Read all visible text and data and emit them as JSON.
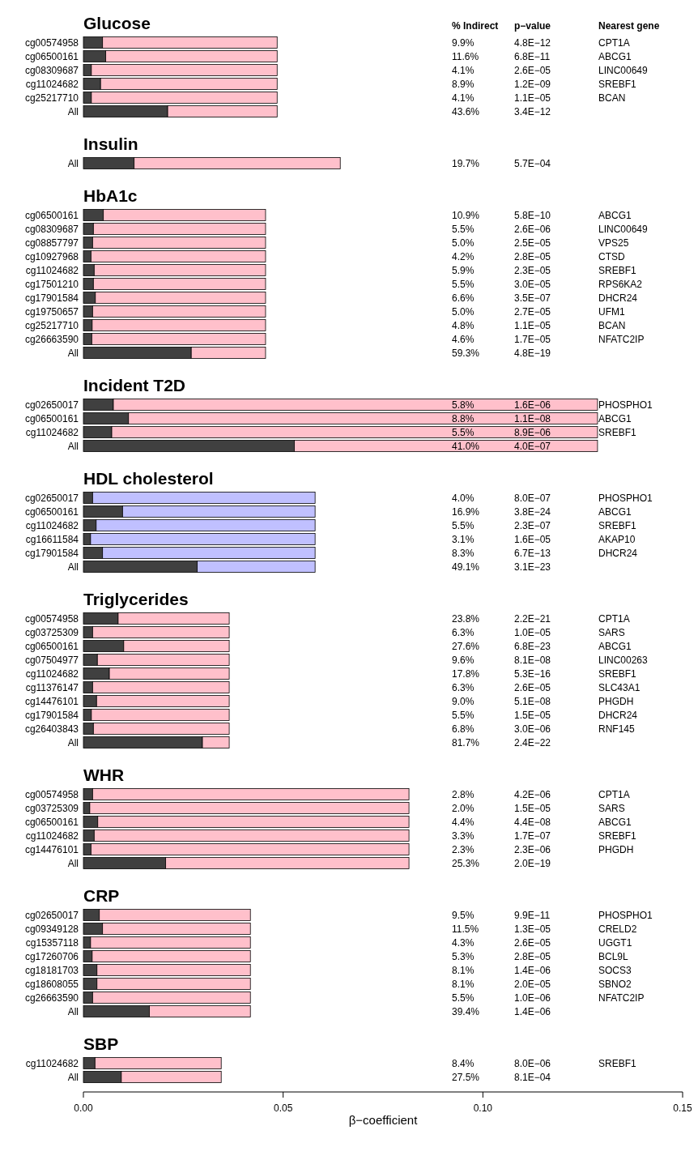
{
  "chart_data": [
    {
      "type": "bar",
      "orientation": "horizontal",
      "stacked": true,
      "title": "Glucose",
      "categories": [
        "cg00574958",
        "cg06500161",
        "cg08309687",
        "cg11024682",
        "cg25217710",
        "All"
      ],
      "xlim": [
        0,
        0.15
      ],
      "tick_labels": "y",
      "grid": false,
      "series": [
        {
          "color": "#404040",
          "values": [
            0.0048,
            0.0056,
            0.002,
            0.0043,
            0.002,
            0.0211
          ]
        },
        {
          "color": "#ffc0cb",
          "values": [
            0.0437,
            0.0429,
            0.0465,
            0.0442,
            0.0465,
            0.0274
          ]
        }
      ],
      "annotations": [
        "% Indirect",
        "p−value",
        "Nearest gene",
        "9.9%",
        "4.8E−12",
        "CPT1A",
        "11.6%",
        "6.8E−11",
        "ABCG1",
        "4.1%",
        "2.6E−05",
        "LINC00649",
        "8.9%",
        "1.2E−09",
        "SREBF1",
        "4.1%",
        "1.1E−05",
        "BCAN",
        "43.6%",
        "3.4E−12"
      ]
    },
    {
      "type": "bar",
      "orientation": "horizontal",
      "stacked": true,
      "title": "Insulin",
      "categories": [
        "All"
      ],
      "xlim": [
        0,
        0.15
      ],
      "tick_labels": "y",
      "grid": false,
      "series": [
        {
          "color": "#404040",
          "values": [
            0.0127
          ]
        },
        {
          "color": "#ffc0cb",
          "values": [
            0.0516
          ]
        }
      ],
      "annotations": [
        "19.7%",
        "5.7E−04"
      ]
    },
    {
      "type": "bar",
      "orientation": "horizontal",
      "stacked": true,
      "title": "HbA1c",
      "categories": [
        "cg06500161",
        "cg08309687",
        "cg08857797",
        "cg10927968",
        "cg11024682",
        "cg17501210",
        "cg17901584",
        "cg19750657",
        "cg25217710",
        "cg26663590",
        "All"
      ],
      "xlim": [
        0,
        0.15
      ],
      "tick_labels": "y",
      "grid": false,
      "series": [
        {
          "color": "#404040",
          "values": [
            0.005,
            0.0025,
            0.0023,
            0.0019,
            0.0027,
            0.0025,
            0.003,
            0.0023,
            0.0022,
            0.0021,
            0.027
          ]
        },
        {
          "color": "#ffc0cb",
          "values": [
            0.0406,
            0.0431,
            0.0433,
            0.0437,
            0.0429,
            0.0431,
            0.0426,
            0.0433,
            0.0434,
            0.0435,
            0.0186
          ]
        }
      ],
      "annotations": [
        "10.9%",
        "5.8E−10",
        "ABCG1",
        "5.5%",
        "2.6E−06",
        "LINC00649",
        "5.0%",
        "2.5E−05",
        "VPS25",
        "4.2%",
        "2.8E−05",
        "CTSD",
        "5.9%",
        "2.3E−05",
        "SREBF1",
        "5.5%",
        "3.0E−05",
        "RPS6KA2",
        "6.6%",
        "3.5E−07",
        "DHCR24",
        "5.0%",
        "2.7E−05",
        "UFM1",
        "4.8%",
        "1.1E−05",
        "BCAN",
        "4.6%",
        "1.7E−05",
        "NFATC2IP",
        "59.3%",
        "4.8E−19"
      ]
    },
    {
      "type": "bar",
      "orientation": "horizontal",
      "stacked": true,
      "title": "Incident T2D",
      "categories": [
        "cg02650017",
        "cg06500161",
        "cg11024682",
        "All"
      ],
      "xlim": [
        0,
        0.15
      ],
      "tick_labels": "y",
      "grid": false,
      "series": [
        {
          "color": "#404040",
          "values": [
            0.0075,
            0.0113,
            0.0071,
            0.0528
          ]
        },
        {
          "color": "#ffc0cb",
          "values": [
            0.1212,
            0.1174,
            0.1216,
            0.0759
          ]
        }
      ],
      "annotations": [
        "5.8%",
        "1.6E−06",
        "PHOSPHO1",
        "8.8%",
        "1.1E−08",
        "ABCG1",
        "5.5%",
        "8.9E−06",
        "SREBF1",
        "41.0%",
        "4.0E−07"
      ]
    },
    {
      "type": "bar",
      "orientation": "horizontal",
      "stacked": true,
      "title": "HDL cholesterol",
      "categories": [
        "cg02650017",
        "cg06500161",
        "cg11024682",
        "cg16611584",
        "cg17901584",
        "All"
      ],
      "xlim": [
        0,
        0.15
      ],
      "tick_labels": "y",
      "grid": false,
      "series": [
        {
          "color": "#404040",
          "values": [
            0.0023,
            0.0098,
            0.0032,
            0.0018,
            0.0048,
            0.0285
          ]
        },
        {
          "color": "#c0c0ff",
          "values": [
            0.0557,
            0.0482,
            0.0548,
            0.0562,
            0.0532,
            0.0295
          ]
        }
      ],
      "annotations": [
        "4.0%",
        "8.0E−07",
        "PHOSPHO1",
        "16.9%",
        "3.8E−24",
        "ABCG1",
        "5.5%",
        "2.3E−07",
        "SREBF1",
        "3.1%",
        "1.6E−05",
        "AKAP10",
        "8.3%",
        "6.7E−13",
        "DHCR24",
        "49.1%",
        "3.1E−23"
      ]
    },
    {
      "type": "bar",
      "orientation": "horizontal",
      "stacked": true,
      "title": "Triglycerides",
      "categories": [
        "cg00574958",
        "cg03725309",
        "cg06500161",
        "cg07504977",
        "cg11024682",
        "cg11376147",
        "cg14476101",
        "cg17901584",
        "cg26403843",
        "All"
      ],
      "xlim": [
        0,
        0.15
      ],
      "tick_labels": "y",
      "grid": false,
      "series": [
        {
          "color": "#404040",
          "values": [
            0.0087,
            0.0023,
            0.0101,
            0.0035,
            0.0065,
            0.0023,
            0.0033,
            0.002,
            0.0025,
            0.0298
          ]
        },
        {
          "color": "#ffc0cb",
          "values": [
            0.0278,
            0.0342,
            0.0264,
            0.033,
            0.03,
            0.0342,
            0.0332,
            0.0345,
            0.034,
            0.0067
          ]
        }
      ],
      "annotations": [
        "23.8%",
        "2.2E−21",
        "CPT1A",
        "6.3%",
        "1.0E−05",
        "SARS",
        "27.6%",
        "6.8E−23",
        "ABCG1",
        "9.6%",
        "8.1E−08",
        "LINC00263",
        "17.8%",
        "5.3E−16",
        "SREBF1",
        "6.3%",
        "2.6E−05",
        "SLC43A1",
        "9.0%",
        "5.1E−08",
        "PHGDH",
        "5.5%",
        "1.5E−05",
        "DHCR24",
        "6.8%",
        "3.0E−06",
        "RNF145",
        "81.7%",
        "2.4E−22"
      ]
    },
    {
      "type": "bar",
      "orientation": "horizontal",
      "stacked": true,
      "title": "WHR",
      "categories": [
        "cg00574958",
        "cg03725309",
        "cg06500161",
        "cg11024682",
        "cg14476101",
        "All"
      ],
      "xlim": [
        0,
        0.15
      ],
      "tick_labels": "y",
      "grid": false,
      "series": [
        {
          "color": "#404040",
          "values": [
            0.0023,
            0.0016,
            0.0036,
            0.0027,
            0.0019,
            0.0206
          ]
        },
        {
          "color": "#ffc0cb",
          "values": [
            0.0792,
            0.0799,
            0.0779,
            0.0788,
            0.0796,
            0.0609
          ]
        }
      ],
      "annotations": [
        "2.8%",
        "4.2E−06",
        "CPT1A",
        "2.0%",
        "1.5E−05",
        "SARS",
        "4.4%",
        "4.4E−08",
        "ABCG1",
        "3.3%",
        "1.7E−07",
        "SREBF1",
        "2.3%",
        "2.3E−06",
        "PHGDH",
        "25.3%",
        "2.0E−19"
      ]
    },
    {
      "type": "bar",
      "orientation": "horizontal",
      "stacked": true,
      "title": "CRP",
      "categories": [
        "cg02650017",
        "cg09349128",
        "cg15357118",
        "cg17260706",
        "cg18181703",
        "cg18608055",
        "cg26663590",
        "All"
      ],
      "xlim": [
        0,
        0.15
      ],
      "tick_labels": "y",
      "grid": false,
      "series": [
        {
          "color": "#404040",
          "values": [
            0.004,
            0.0048,
            0.0018,
            0.0022,
            0.0034,
            0.0034,
            0.0023,
            0.0165
          ]
        },
        {
          "color": "#ffc0cb",
          "values": [
            0.0378,
            0.037,
            0.04,
            0.0396,
            0.0384,
            0.0384,
            0.0395,
            0.0253
          ]
        }
      ],
      "annotations": [
        "9.5%",
        "9.9E−11",
        "PHOSPHO1",
        "11.5%",
        "1.3E−05",
        "CRELD2",
        "4.3%",
        "2.6E−05",
        "UGGT1",
        "5.3%",
        "2.8E−05",
        "BCL9L",
        "8.1%",
        "1.4E−06",
        "SOCS3",
        "8.1%",
        "2.0E−05",
        "SBNO2",
        "5.5%",
        "1.0E−06",
        "NFATC2IP",
        "39.4%",
        "1.4E−06"
      ]
    },
    {
      "type": "bar",
      "orientation": "horizontal",
      "stacked": true,
      "title": "SBP",
      "categories": [
        "cg11024682",
        "All"
      ],
      "xlim": [
        0,
        0.15
      ],
      "xticks": [
        {
          "value": 0,
          "label": "0.00"
        },
        {
          "value": 0.05,
          "label": "0.05"
        },
        {
          "value": 0.1,
          "label": "0.10"
        },
        {
          "value": 0.15,
          "label": "0.15"
        }
      ],
      "xlabel": "β−coefficient",
      "grid": false,
      "series": [
        {
          "color": "#404040",
          "values": [
            0.0029,
            0.0095
          ]
        },
        {
          "color": "#ffc0cb",
          "values": [
            0.0316,
            0.025
          ]
        }
      ],
      "annotations": [
        "8.4%",
        "8.0E−06",
        "SREBF1",
        "27.5%",
        "8.1E−04"
      ]
    }
  ]
}
